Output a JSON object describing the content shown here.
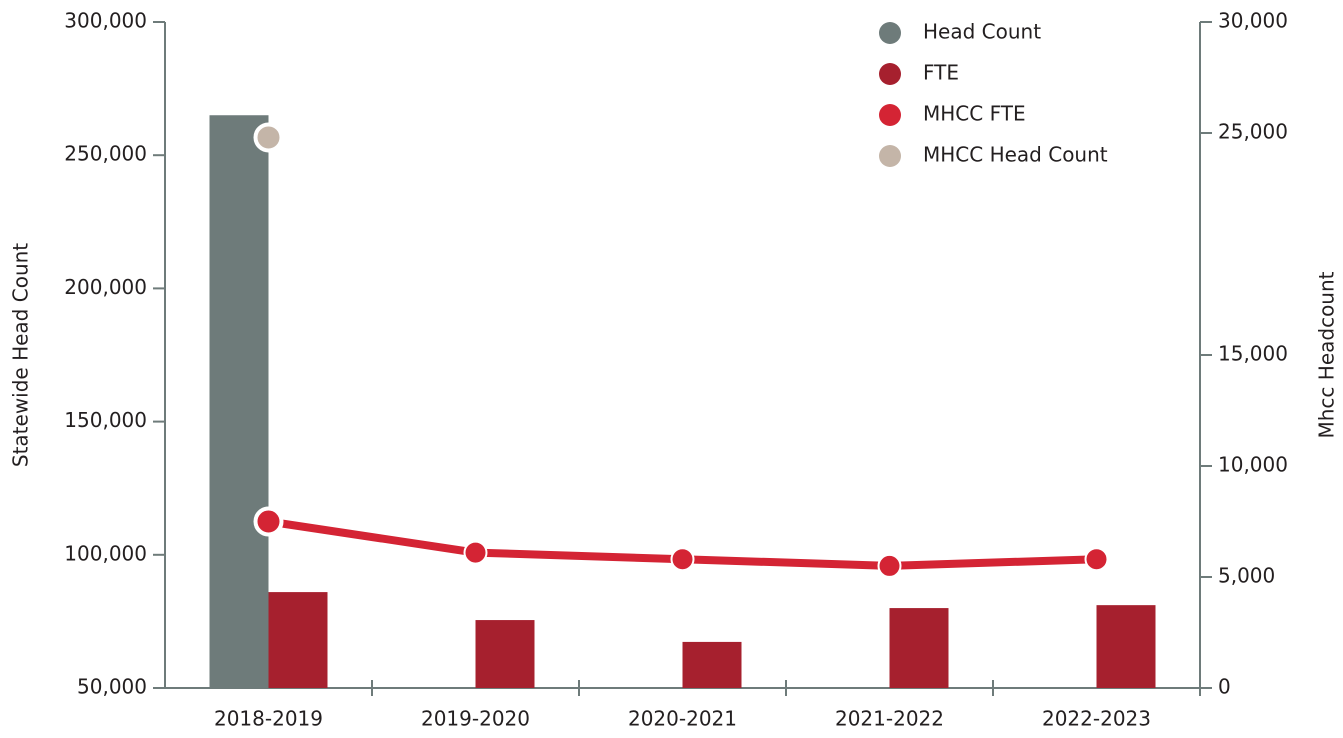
{
  "chart_data": {
    "type": "bar-line",
    "categories": [
      "2018-2019",
      "2019-2020",
      "2020-2021",
      "2021-2022",
      "2022-2023"
    ],
    "series": [
      {
        "name": "Head Count",
        "type": "bar",
        "color": "#6e7b7a",
        "values": [
          265000,
          null,
          null,
          null,
          null
        ]
      },
      {
        "name": "FTE",
        "type": "bar",
        "color": "#a6202e",
        "values": [
          86000,
          75500,
          67300,
          80000,
          81100
        ]
      },
      {
        "name": "MHCC FTE",
        "type": "line",
        "axis": "y2",
        "color": "#d42434",
        "values": [
          7500,
          6100,
          5800,
          5500,
          5800
        ]
      },
      {
        "name": "MHCC Head Count",
        "type": "line",
        "axis": "y2",
        "color": "#c4b5a8",
        "values": [
          24800,
          null,
          null,
          null,
          null
        ]
      }
    ],
    "ylabel": "Statewide Head Count",
    "y2label": "Mhcc Headcount",
    "ylim": [
      50000,
      300000
    ],
    "yticks": [
      {
        "value": 50000,
        "label": "50,000"
      },
      {
        "value": 100000,
        "label": "100,000"
      },
      {
        "value": 150000,
        "label": "150,000"
      },
      {
        "value": 200000,
        "label": "200,000"
      },
      {
        "value": 250000,
        "label": "250,000"
      },
      {
        "value": 300000,
        "label": "300,000"
      }
    ],
    "y2lim": [
      0,
      30000
    ],
    "y2ticks": [
      0,
      {
        "value": 5000,
        "label": "5,000"
      },
      {
        "value": 10000,
        "label": "10,000"
      },
      {
        "value": 15000,
        "label": "15,000"
      },
      {
        "value": 25000,
        "label": "25,000"
      },
      {
        "value": 30000,
        "label": "30,000"
      }
    ],
    "legend": "upper right"
  }
}
